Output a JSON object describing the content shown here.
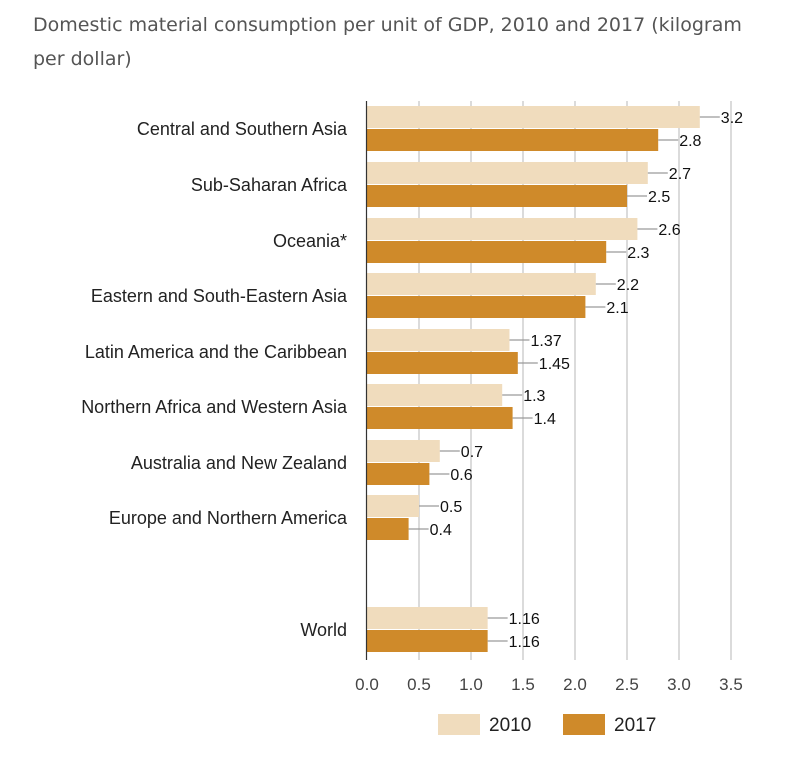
{
  "chart_data": {
    "type": "bar",
    "orientation": "horizontal",
    "title": "Domestic material consumption per unit of GDP, 2010 and 2017 (kilogram per dollar)",
    "categories": [
      "Central and Southern Asia",
      "Sub-Saharan Africa",
      "Oceania*",
      "Eastern and South-Eastern Asia",
      "Latin America and the Caribbean",
      "Northern Africa and Western Asia",
      "Australia and New Zealand",
      "Europe and Northern America",
      "World"
    ],
    "series": [
      {
        "name": "2010",
        "color": "#f0dcbd",
        "values": [
          3.2,
          2.7,
          2.6,
          2.2,
          1.37,
          1.3,
          0.7,
          0.5,
          1.16
        ]
      },
      {
        "name": "2017",
        "color": "#cf8a2a",
        "values": [
          2.8,
          2.5,
          2.3,
          2.1,
          1.45,
          1.4,
          0.6,
          0.4,
          1.16
        ]
      }
    ],
    "data_labels": [
      [
        "3.2",
        "2.7",
        "2.6",
        "2.2",
        "1.37",
        "1.3",
        "0.7",
        "0.5",
        "1.16"
      ],
      [
        "2.8",
        "2.5",
        "2.3",
        "2.1",
        "1.45",
        "1.4",
        "0.6",
        "0.4",
        "1.16"
      ]
    ],
    "xlim": [
      0,
      3.5
    ],
    "xticks": [
      "0.0",
      "0.5",
      "1.0",
      "1.5",
      "2.0",
      "2.5",
      "3.0",
      "3.5"
    ],
    "grid": true,
    "legend_position": "bottom"
  }
}
